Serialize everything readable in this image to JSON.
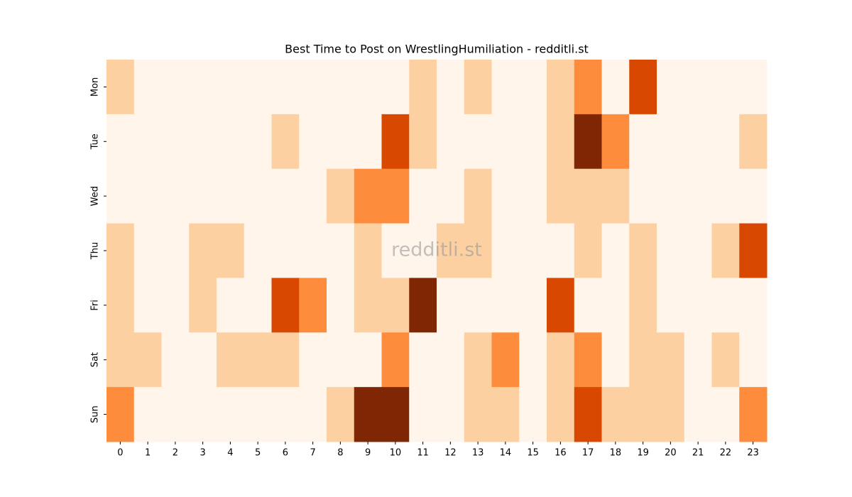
{
  "chart_data": {
    "type": "heatmap",
    "title": "Best Time to Post on WrestlingHumiliation - redditli.st",
    "watermark": "redditli.st",
    "categories": [
      "0",
      "1",
      "2",
      "3",
      "4",
      "5",
      "6",
      "7",
      "8",
      "9",
      "10",
      "11",
      "12",
      "13",
      "14",
      "15",
      "16",
      "17",
      "18",
      "19",
      "20",
      "21",
      "22",
      "23"
    ],
    "rows": [
      "Mon",
      "Tue",
      "Wed",
      "Thu",
      "Fri",
      "Sat",
      "Sun"
    ],
    "zlim": [
      0,
      4
    ],
    "colors": [
      "#fff5eb",
      "#fdd0a2",
      "#fd8d3c",
      "#d94801",
      "#7f2704"
    ],
    "values": [
      [
        1,
        0,
        0,
        0,
        0,
        0,
        0,
        0,
        0,
        0,
        0,
        1,
        0,
        1,
        0,
        0,
        1,
        2,
        0,
        3,
        0,
        0,
        0,
        0
      ],
      [
        0,
        0,
        0,
        0,
        0,
        0,
        1,
        0,
        0,
        0,
        3,
        1,
        0,
        0,
        0,
        0,
        1,
        4,
        2,
        0,
        0,
        0,
        0,
        1
      ],
      [
        0,
        0,
        0,
        0,
        0,
        0,
        0,
        0,
        1,
        2,
        2,
        0,
        0,
        1,
        0,
        0,
        1,
        1,
        1,
        0,
        0,
        0,
        0,
        0
      ],
      [
        1,
        0,
        0,
        1,
        1,
        0,
        0,
        0,
        0,
        1,
        0,
        0,
        1,
        1,
        0,
        0,
        0,
        1,
        0,
        1,
        0,
        0,
        1,
        3
      ],
      [
        1,
        0,
        0,
        1,
        0,
        0,
        3,
        2,
        0,
        1,
        1,
        4,
        0,
        0,
        0,
        0,
        3,
        0,
        0,
        1,
        0,
        0,
        0,
        0
      ],
      [
        1,
        1,
        0,
        0,
        1,
        1,
        1,
        0,
        0,
        0,
        2,
        0,
        0,
        1,
        2,
        0,
        1,
        2,
        0,
        1,
        1,
        0,
        1,
        0
      ],
      [
        2,
        0,
        0,
        0,
        0,
        0,
        0,
        0,
        1,
        4,
        4,
        0,
        0,
        1,
        1,
        0,
        1,
        3,
        1,
        1,
        1,
        0,
        0,
        2
      ]
    ]
  }
}
